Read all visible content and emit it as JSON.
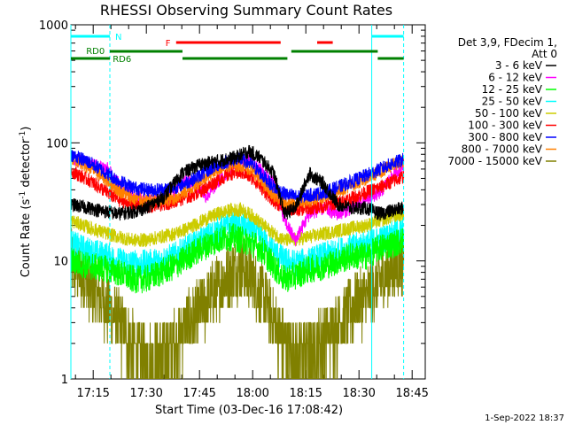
{
  "chart_data": {
    "type": "line",
    "title": "RHESSI Observing Summary Count Rates",
    "xlabel": "Start Time (03-Dec-16 17:08:42)",
    "ylabel_main": "Count Rate (s",
    "ylabel_sup1": "-1",
    "ylabel_mid": " detector",
    "ylabel_sup2": "-1",
    "ylabel_end": ")",
    "x_tick_labels": [
      "17:15",
      "17:30",
      "17:45",
      "18:00",
      "18:15",
      "18:30",
      "18:45"
    ],
    "x_tick_minutes": [
      1035,
      1050,
      1065,
      1080,
      1095,
      1110,
      1125
    ],
    "xlim_minutes": [
      1028.7,
      1128.7
    ],
    "y_scale": "log",
    "ylim": [
      1,
      1000
    ],
    "y_tick_labels": [
      "1",
      "10",
      "100",
      "1000"
    ],
    "y_tick_values": [
      1,
      10,
      100,
      1000
    ],
    "timestamp": "1-Sep-2022 18:37",
    "legend_header": [
      "Det 3,9, FDecim 1,",
      "Att 0"
    ],
    "annotations": {
      "N": {
        "label": "N",
        "color": "#00ffff"
      },
      "F": {
        "label": "F",
        "color": "#ff0000"
      },
      "RD0": {
        "label": "RD0",
        "color": "#008000"
      },
      "RD6": {
        "label": "RD6",
        "color": "#008000"
      }
    },
    "night_bars_minutes": [
      [
        1028.7,
        1039.7
      ],
      [
        1113.6,
        1122.6
      ]
    ],
    "flare_bars_minutes": [
      [
        1058.4,
        1087.9
      ],
      [
        1098.2,
        1102.6
      ]
    ],
    "rd0_bars_minutes": [
      [
        1039.7,
        1060.2
      ],
      [
        1090.9,
        1115.3
      ]
    ],
    "rd6_bars_minutes": [
      [
        1028.7,
        1039.7
      ],
      [
        1060.2,
        1089.8
      ],
      [
        1115.3,
        1122.6
      ]
    ],
    "night_boundaries_minutes": [
      1039.7,
      1122.6
    ],
    "night_lines_minutes": [
      1028.7,
      1113.6
    ],
    "series": [
      {
        "name": "3 - 6 keV",
        "color": "#000000",
        "points": [
          [
            1028.7,
            30
          ],
          [
            1034,
            28
          ],
          [
            1039,
            26
          ],
          [
            1042,
            25
          ],
          [
            1046,
            26
          ],
          [
            1050,
            28
          ],
          [
            1055,
            35
          ],
          [
            1060,
            55
          ],
          [
            1065,
            65
          ],
          [
            1070,
            70
          ],
          [
            1075,
            75
          ],
          [
            1079,
            85
          ],
          [
            1082,
            75
          ],
          [
            1086,
            55
          ],
          [
            1089,
            25
          ],
          [
            1092,
            28
          ],
          [
            1096,
            55
          ],
          [
            1100,
            45
          ],
          [
            1104,
            30
          ],
          [
            1108,
            28
          ],
          [
            1112,
            28
          ],
          [
            1116,
            25
          ],
          [
            1120,
            27
          ],
          [
            1122.6,
            28
          ]
        ]
      },
      {
        "name": "6 - 12 keV",
        "color": "#ff00ff",
        "points": [
          [
            1028.7,
            75
          ],
          [
            1034,
            66
          ],
          [
            1039,
            60
          ],
          [
            1042,
            45
          ],
          [
            1046,
            38
          ],
          [
            1050,
            33
          ],
          [
            1053,
            32
          ],
          [
            1056,
            35
          ],
          [
            1058,
            40
          ],
          [
            1061,
            50
          ],
          [
            1064,
            45
          ],
          [
            1067,
            35
          ],
          [
            1071,
            50
          ],
          [
            1075,
            65
          ],
          [
            1079,
            72
          ],
          [
            1082,
            60
          ],
          [
            1086,
            45
          ],
          [
            1089,
            22
          ],
          [
            1092,
            15
          ],
          [
            1096,
            25
          ],
          [
            1100,
            28
          ],
          [
            1104,
            25
          ],
          [
            1108,
            28
          ],
          [
            1112,
            33
          ],
          [
            1116,
            38
          ],
          [
            1120,
            55
          ],
          [
            1122.6,
            65
          ]
        ]
      },
      {
        "name": "12 - 25 keV",
        "color": "#00ff00",
        "points": [
          [
            1028.7,
            10
          ],
          [
            1034,
            9
          ],
          [
            1039,
            8.5
          ],
          [
            1042,
            8
          ],
          [
            1046,
            7
          ],
          [
            1050,
            7
          ],
          [
            1054,
            8
          ],
          [
            1058,
            9
          ],
          [
            1062,
            11
          ],
          [
            1066,
            13
          ],
          [
            1070,
            15
          ],
          [
            1074,
            16
          ],
          [
            1077,
            15
          ],
          [
            1080,
            14
          ],
          [
            1083,
            12
          ],
          [
            1086,
            9
          ],
          [
            1089,
            7
          ],
          [
            1092,
            7.5
          ],
          [
            1096,
            8.5
          ],
          [
            1100,
            9
          ],
          [
            1104,
            10
          ],
          [
            1108,
            11
          ],
          [
            1112,
            11
          ],
          [
            1116,
            13
          ],
          [
            1120,
            14
          ],
          [
            1122.6,
            15
          ]
        ]
      },
      {
        "name": "25 - 50 keV",
        "color": "#00ffff",
        "points": [
          [
            1028.7,
            14
          ],
          [
            1034,
            12
          ],
          [
            1039,
            11
          ],
          [
            1042,
            10
          ],
          [
            1046,
            9.5
          ],
          [
            1050,
            9.5
          ],
          [
            1054,
            10
          ],
          [
            1058,
            11
          ],
          [
            1062,
            13
          ],
          [
            1066,
            15
          ],
          [
            1070,
            18
          ],
          [
            1074,
            20
          ],
          [
            1077,
            20
          ],
          [
            1080,
            18
          ],
          [
            1083,
            15
          ],
          [
            1086,
            12
          ],
          [
            1089,
            10
          ],
          [
            1092,
            9.5
          ],
          [
            1096,
            10
          ],
          [
            1100,
            11
          ],
          [
            1104,
            12
          ],
          [
            1108,
            13
          ],
          [
            1112,
            14
          ],
          [
            1116,
            15
          ],
          [
            1120,
            17
          ],
          [
            1122.6,
            18
          ]
        ]
      },
      {
        "name": "50 - 100 keV",
        "color": "#cccc00",
        "points": [
          [
            1028.7,
            22
          ],
          [
            1034,
            19
          ],
          [
            1039,
            17
          ],
          [
            1042,
            16
          ],
          [
            1046,
            15
          ],
          [
            1050,
            15
          ],
          [
            1054,
            16
          ],
          [
            1058,
            17
          ],
          [
            1062,
            19
          ],
          [
            1066,
            22
          ],
          [
            1070,
            25
          ],
          [
            1074,
            27
          ],
          [
            1077,
            27
          ],
          [
            1080,
            24
          ],
          [
            1083,
            20
          ],
          [
            1086,
            17
          ],
          [
            1089,
            15
          ],
          [
            1092,
            15
          ],
          [
            1096,
            16
          ],
          [
            1100,
            17
          ],
          [
            1104,
            18
          ],
          [
            1108,
            19
          ],
          [
            1112,
            20
          ],
          [
            1116,
            22
          ],
          [
            1120,
            24
          ],
          [
            1122.6,
            25
          ]
        ]
      },
      {
        "name": "100 - 300 keV",
        "color": "#ff0000",
        "points": [
          [
            1028.7,
            58
          ],
          [
            1034,
            48
          ],
          [
            1039,
            38
          ],
          [
            1042,
            33
          ],
          [
            1046,
            30
          ],
          [
            1050,
            29
          ],
          [
            1054,
            30
          ],
          [
            1058,
            32
          ],
          [
            1062,
            35
          ],
          [
            1066,
            40
          ],
          [
            1070,
            48
          ],
          [
            1074,
            55
          ],
          [
            1077,
            56
          ],
          [
            1080,
            50
          ],
          [
            1083,
            40
          ],
          [
            1086,
            32
          ],
          [
            1089,
            28
          ],
          [
            1092,
            27
          ],
          [
            1096,
            28
          ],
          [
            1100,
            29
          ],
          [
            1104,
            31
          ],
          [
            1108,
            34
          ],
          [
            1112,
            38
          ],
          [
            1116,
            42
          ],
          [
            1120,
            48
          ],
          [
            1122.6,
            52
          ]
        ]
      },
      {
        "name": "300 - 800 keV",
        "color": "#0000ff",
        "points": [
          [
            1028.7,
            80
          ],
          [
            1034,
            68
          ],
          [
            1039,
            55
          ],
          [
            1042,
            48
          ],
          [
            1046,
            42
          ],
          [
            1050,
            40
          ],
          [
            1054,
            40
          ],
          [
            1058,
            42
          ],
          [
            1062,
            47
          ],
          [
            1066,
            55
          ],
          [
            1070,
            65
          ],
          [
            1074,
            72
          ],
          [
            1077,
            72
          ],
          [
            1080,
            65
          ],
          [
            1083,
            52
          ],
          [
            1086,
            42
          ],
          [
            1089,
            37
          ],
          [
            1092,
            35
          ],
          [
            1096,
            36
          ],
          [
            1100,
            38
          ],
          [
            1104,
            42
          ],
          [
            1108,
            47
          ],
          [
            1112,
            53
          ],
          [
            1116,
            60
          ],
          [
            1120,
            68
          ],
          [
            1122.6,
            72
          ]
        ]
      },
      {
        "name": "800 - 7000 keV",
        "color": "#ff8000",
        "points": [
          [
            1028.7,
            76
          ],
          [
            1034,
            62
          ],
          [
            1039,
            48
          ],
          [
            1042,
            40
          ],
          [
            1046,
            34
          ],
          [
            1050,
            32
          ],
          [
            1054,
            32
          ],
          [
            1058,
            34
          ],
          [
            1062,
            40
          ],
          [
            1066,
            50
          ],
          [
            1070,
            60
          ],
          [
            1074,
            65
          ],
          [
            1077,
            65
          ],
          [
            1080,
            58
          ],
          [
            1083,
            45
          ],
          [
            1086,
            36
          ],
          [
            1089,
            32
          ],
          [
            1092,
            31
          ],
          [
            1096,
            32
          ],
          [
            1100,
            35
          ],
          [
            1104,
            39
          ],
          [
            1108,
            44
          ],
          [
            1112,
            50
          ],
          [
            1116,
            57
          ],
          [
            1120,
            66
          ],
          [
            1122.6,
            70
          ]
        ]
      },
      {
        "name": "7000 - 15000 keV",
        "color": "#808000",
        "points": [
          [
            1028.7,
            10
          ],
          [
            1034,
            6
          ],
          [
            1039,
            4
          ],
          [
            1042,
            3
          ],
          [
            1046,
            2
          ],
          [
            1050,
            1.5
          ],
          [
            1054,
            1.6
          ],
          [
            1058,
            2
          ],
          [
            1062,
            3
          ],
          [
            1066,
            4
          ],
          [
            1070,
            6
          ],
          [
            1074,
            8
          ],
          [
            1077,
            9
          ],
          [
            1080,
            7
          ],
          [
            1083,
            5
          ],
          [
            1086,
            3
          ],
          [
            1089,
            2
          ],
          [
            1092,
            1.6
          ],
          [
            1096,
            1.8
          ],
          [
            1100,
            2.2
          ],
          [
            1104,
            2.8
          ],
          [
            1108,
            4
          ],
          [
            1112,
            5
          ],
          [
            1116,
            7
          ],
          [
            1120,
            9
          ],
          [
            1122.6,
            10
          ]
        ]
      }
    ]
  }
}
